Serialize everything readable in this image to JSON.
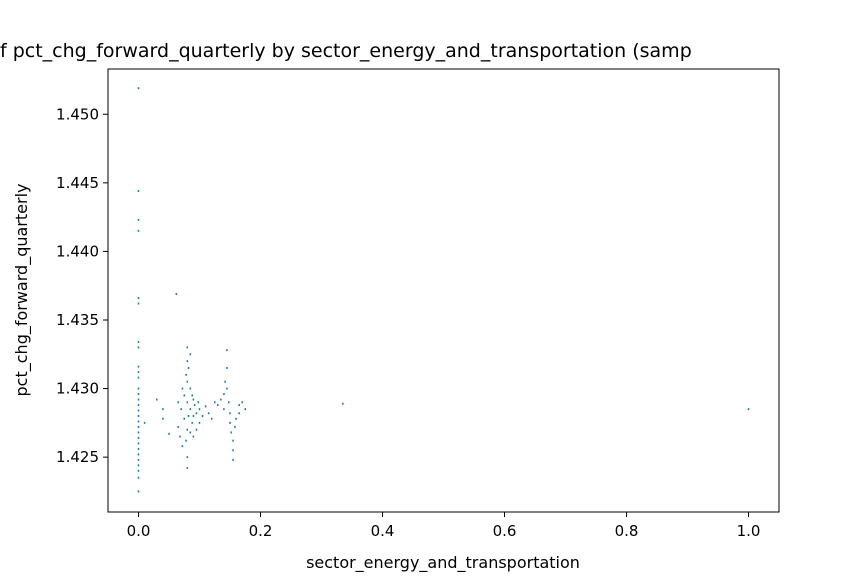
{
  "chart_data": {
    "type": "scatter",
    "title": "f pct_chg_forward_quarterly by sector_energy_and_transportation (samp",
    "xlabel": "sector_energy_and_transportation",
    "ylabel": "pct_chg_forward_quarterly",
    "xlim": [
      -0.05,
      1.05
    ],
    "ylim": [
      1.421,
      1.4533
    ],
    "xticks": [
      "0.0",
      "0.2",
      "0.4",
      "0.6",
      "0.8",
      "1.0"
    ],
    "yticks": [
      "1.425",
      "1.430",
      "1.435",
      "1.440",
      "1.445",
      "1.450"
    ],
    "grid": false,
    "marker_color": "#1f77b4",
    "series": [
      {
        "values": [
          [
            0.0,
            1.4519
          ],
          [
            0.0,
            1.4444
          ],
          [
            0.0,
            1.4423
          ],
          [
            0.0,
            1.4415
          ],
          [
            0.0,
            1.4366
          ],
          [
            0.0,
            1.4362
          ],
          [
            0.0,
            1.4334
          ],
          [
            0.0,
            1.433
          ],
          [
            0.0,
            1.4316
          ],
          [
            0.0,
            1.4312
          ],
          [
            0.0,
            1.4308
          ],
          [
            0.0,
            1.43
          ],
          [
            0.0,
            1.4296
          ],
          [
            0.0,
            1.4292
          ],
          [
            0.0,
            1.4288
          ],
          [
            0.0,
            1.4284
          ],
          [
            0.0,
            1.428
          ],
          [
            0.0,
            1.4276
          ],
          [
            0.0,
            1.4272
          ],
          [
            0.0,
            1.4268
          ],
          [
            0.0,
            1.4264
          ],
          [
            0.0,
            1.426
          ],
          [
            0.0,
            1.4256
          ],
          [
            0.0,
            1.4252
          ],
          [
            0.0,
            1.4248
          ],
          [
            0.0,
            1.4244
          ],
          [
            0.0,
            1.424
          ],
          [
            0.0,
            1.4235
          ],
          [
            0.0,
            1.4225
          ],
          [
            0.01,
            1.4275
          ],
          [
            0.03,
            1.4292
          ],
          [
            0.04,
            1.4285
          ],
          [
            0.04,
            1.4278
          ],
          [
            0.05,
            1.4267
          ],
          [
            0.062,
            1.4369
          ],
          [
            0.065,
            1.4272
          ],
          [
            0.065,
            1.429
          ],
          [
            0.068,
            1.4265
          ],
          [
            0.07,
            1.4285
          ],
          [
            0.072,
            1.43
          ],
          [
            0.072,
            1.4258
          ],
          [
            0.075,
            1.4295
          ],
          [
            0.075,
            1.4278
          ],
          [
            0.078,
            1.431
          ],
          [
            0.078,
            1.4262
          ],
          [
            0.08,
            1.433
          ],
          [
            0.08,
            1.432
          ],
          [
            0.08,
            1.4305
          ],
          [
            0.08,
            1.429
          ],
          [
            0.08,
            1.427
          ],
          [
            0.08,
            1.425
          ],
          [
            0.08,
            1.4242
          ],
          [
            0.082,
            1.4315
          ],
          [
            0.082,
            1.428
          ],
          [
            0.085,
            1.4325
          ],
          [
            0.085,
            1.43
          ],
          [
            0.085,
            1.4285
          ],
          [
            0.085,
            1.4268
          ],
          [
            0.088,
            1.4295
          ],
          [
            0.088,
            1.4275
          ],
          [
            0.09,
            1.4292
          ],
          [
            0.09,
            1.428
          ],
          [
            0.09,
            1.4265
          ],
          [
            0.092,
            1.4288
          ],
          [
            0.095,
            1.4282
          ],
          [
            0.095,
            1.427
          ],
          [
            0.098,
            1.429
          ],
          [
            0.1,
            1.4285
          ],
          [
            0.1,
            1.4275
          ],
          [
            0.105,
            1.428
          ],
          [
            0.11,
            1.4287
          ],
          [
            0.115,
            1.4282
          ],
          [
            0.12,
            1.4278
          ],
          [
            0.125,
            1.429
          ],
          [
            0.13,
            1.4288
          ],
          [
            0.135,
            1.4292
          ],
          [
            0.14,
            1.4296
          ],
          [
            0.14,
            1.4285
          ],
          [
            0.142,
            1.4305
          ],
          [
            0.145,
            1.4328
          ],
          [
            0.145,
            1.4315
          ],
          [
            0.145,
            1.43
          ],
          [
            0.148,
            1.429
          ],
          [
            0.15,
            1.4282
          ],
          [
            0.15,
            1.4275
          ],
          [
            0.152,
            1.4268
          ],
          [
            0.155,
            1.4262
          ],
          [
            0.155,
            1.4255
          ],
          [
            0.155,
            1.4248
          ],
          [
            0.158,
            1.4272
          ],
          [
            0.16,
            1.4278
          ],
          [
            0.165,
            1.4288
          ],
          [
            0.165,
            1.4282
          ],
          [
            0.17,
            1.429
          ],
          [
            0.175,
            1.4285
          ],
          [
            0.335,
            1.4289
          ],
          [
            1.0,
            1.4285
          ]
        ]
      }
    ]
  }
}
